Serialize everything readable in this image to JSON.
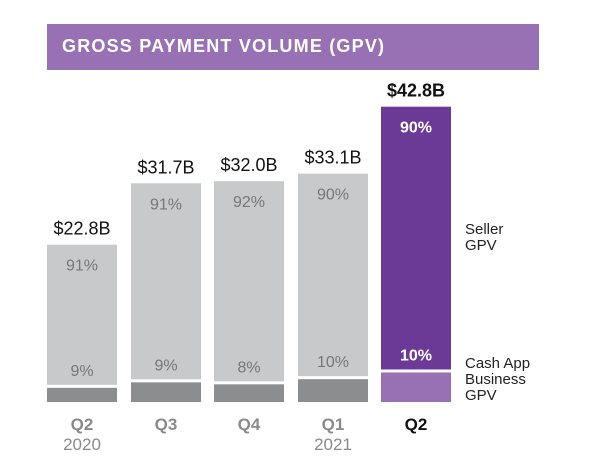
{
  "chart_data": {
    "type": "bar",
    "stacked": true,
    "title": "GROSS PAYMENT VOLUME (GPV)",
    "categories": [
      {
        "quarter": "Q2",
        "year": "2020"
      },
      {
        "quarter": "Q3",
        "year": ""
      },
      {
        "quarter": "Q4",
        "year": ""
      },
      {
        "quarter": "Q1",
        "year": "2021"
      },
      {
        "quarter": "Q2",
        "year": ""
      }
    ],
    "totals": [
      22.8,
      31.7,
      32.0,
      33.1,
      42.8
    ],
    "total_labels": [
      "$22.8B",
      "$31.7B",
      "$32.0B",
      "$33.1B",
      "$42.8B"
    ],
    "series": [
      {
        "name": "Seller GPV",
        "values_pct": [
          91,
          91,
          92,
          90,
          90
        ],
        "labels": [
          "91%",
          "91%",
          "92%",
          "90%",
          "90%"
        ]
      },
      {
        "name": "Cash App Business GPV",
        "values_pct": [
          9,
          9,
          8,
          10,
          10
        ],
        "labels": [
          "9%",
          "9%",
          "8%",
          "10%",
          "10%"
        ]
      }
    ],
    "legend": {
      "seller": [
        "Seller",
        "GPV"
      ],
      "cash": [
        "Cash App",
        "Business",
        "GPV"
      ],
      "placement": "right"
    },
    "colors": {
      "header": "#9771b4",
      "seller": "#c8c9cb",
      "cash": "#8c8d8f",
      "highlight_seller": "#6a3a96",
      "highlight_cash": "#9771b4"
    }
  }
}
